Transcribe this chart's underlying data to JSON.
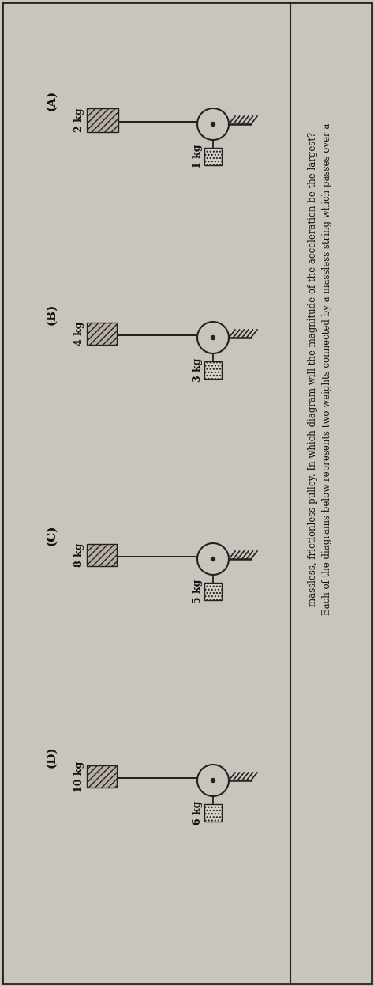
{
  "bg_color": "#c9c5bd",
  "border_color": "#222222",
  "diagrams": [
    {
      "label": "A",
      "mass_left": "2 kg",
      "mass_right": "1 kg",
      "lw": 40,
      "lh": 30,
      "rw": 22,
      "rh": 22
    },
    {
      "label": "B",
      "mass_left": "4 kg",
      "mass_right": "3 kg",
      "lw": 38,
      "lh": 28,
      "rw": 22,
      "rh": 22
    },
    {
      "label": "C",
      "mass_left": "8 kg",
      "mass_right": "5 kg",
      "lw": 38,
      "lh": 28,
      "rw": 22,
      "rh": 22
    },
    {
      "label": "D",
      "mass_left": "10 kg",
      "mass_right": "6 kg",
      "lw": 38,
      "lh": 28,
      "rw": 22,
      "rh": 22
    }
  ],
  "title_line1": "Each of the diagrams below represents two weights connected by a massless string which passes over a",
  "title_line2": "massless, frictionless pulley. In which diagram will the magnitude of the acceleration be the largest?",
  "text_color": "#111111",
  "pulley_color": "#222222",
  "string_color": "#222222",
  "wall_color": "#222222",
  "left_block_hatch": "////",
  "right_block_hatch": "....",
  "left_block_face": "#b8b0a4",
  "right_block_face": "#d4d0c8",
  "label_fontsize": 11,
  "mass_fontsize": 9,
  "title_fontsize": 8.5
}
